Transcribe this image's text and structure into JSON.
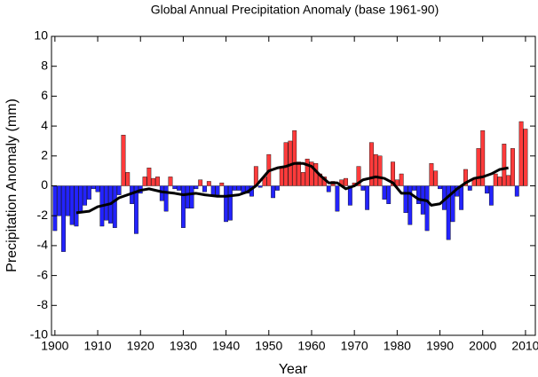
{
  "chart_data": {
    "type": "bar",
    "title": "Global Annual Precipitation Anomaly (base 1961-90)",
    "xlabel": "Year",
    "ylabel": "Precipitation Anomaly (mm)",
    "xlim": [
      1899.2,
      2012.3
    ],
    "ylim": [
      -10,
      10
    ],
    "xticks": [
      1900,
      1910,
      1920,
      1930,
      1940,
      1950,
      1960,
      1970,
      1980,
      1990,
      2000,
      2010
    ],
    "yticks": [
      -10,
      -8,
      -6,
      -4,
      -2,
      0,
      2,
      4,
      6,
      8,
      10
    ],
    "colors": {
      "positive": "#ff3b3b",
      "negative": "#2323ff",
      "line": "#000000"
    },
    "x": [
      1900,
      1901,
      1902,
      1903,
      1904,
      1905,
      1906,
      1907,
      1908,
      1909,
      1910,
      1911,
      1912,
      1913,
      1914,
      1915,
      1916,
      1917,
      1918,
      1919,
      1920,
      1921,
      1922,
      1923,
      1924,
      1925,
      1926,
      1927,
      1928,
      1929,
      1930,
      1931,
      1932,
      1933,
      1934,
      1935,
      1936,
      1937,
      1938,
      1939,
      1940,
      1941,
      1942,
      1943,
      1944,
      1945,
      1946,
      1947,
      1948,
      1949,
      1950,
      1951,
      1952,
      1953,
      1954,
      1955,
      1956,
      1957,
      1958,
      1959,
      1960,
      1961,
      1962,
      1963,
      1964,
      1965,
      1966,
      1967,
      1968,
      1969,
      1970,
      1971,
      1972,
      1973,
      1974,
      1975,
      1976,
      1977,
      1978,
      1979,
      1980,
      1981,
      1982,
      1983,
      1984,
      1985,
      1986,
      1987,
      1988,
      1989,
      1990,
      1991,
      1992,
      1993,
      1994,
      1995,
      1996,
      1997,
      1998,
      1999,
      2000,
      2001,
      2002,
      2003,
      2004,
      2005,
      2006,
      2007,
      2008,
      2009,
      2010
    ],
    "values": [
      -3.0,
      -2.0,
      -4.4,
      -2.0,
      -2.6,
      -2.7,
      -1.8,
      -1.3,
      -0.9,
      -0.2,
      -0.4,
      -2.7,
      -2.3,
      -2.5,
      -2.8,
      -0.6,
      3.4,
      0.9,
      -1.2,
      -3.2,
      -0.5,
      0.6,
      1.2,
      0.5,
      0.6,
      -1.0,
      -1.7,
      0.6,
      -0.2,
      -0.3,
      -2.8,
      -1.5,
      -1.5,
      -0.2,
      0.4,
      -0.4,
      0.3,
      -0.6,
      -0.6,
      0.2,
      -2.4,
      -2.3,
      -0.3,
      -0.3,
      -0.5,
      -0.5,
      -0.7,
      1.3,
      -0.1,
      0.6,
      2.1,
      -0.8,
      -0.3,
      1.3,
      2.9,
      3.0,
      3.7,
      1.6,
      0.9,
      1.8,
      1.6,
      1.5,
      0.8,
      0.6,
      -0.4,
      0.3,
      -1.7,
      0.4,
      0.5,
      -1.3,
      0.2,
      1.3,
      -0.3,
      -1.6,
      2.9,
      2.1,
      2.0,
      -0.9,
      -1.2,
      1.6,
      0.4,
      0.8,
      -1.8,
      -2.6,
      -0.3,
      -1.2,
      -1.9,
      -3.0,
      1.5,
      1.0,
      -0.2,
      -1.6,
      -3.6,
      -2.4,
      -0.7,
      -1.6,
      1.1,
      -0.3,
      0.5,
      2.5,
      3.7,
      -0.5,
      -1.3,
      0.8,
      0.6,
      2.8,
      0.7,
      2.5,
      -0.7,
      4.3,
      3.8
    ],
    "smooth": {
      "x": [
        1905,
        1908,
        1910,
        1913,
        1915,
        1918,
        1920,
        1922,
        1925,
        1928,
        1930,
        1933,
        1935,
        1938,
        1940,
        1943,
        1945,
        1947,
        1950,
        1952,
        1954,
        1956,
        1958,
        1960,
        1962,
        1964,
        1966,
        1968,
        1970,
        1972,
        1975,
        1977,
        1979,
        1981,
        1983,
        1985,
        1987,
        1988,
        1990,
        1992,
        1994,
        1996,
        1998,
        2000,
        2002,
        2004,
        2006
      ],
      "values": [
        -1.8,
        -1.7,
        -1.4,
        -1.2,
        -0.8,
        -0.5,
        -0.3,
        -0.2,
        -0.4,
        -0.5,
        -0.6,
        -0.5,
        -0.6,
        -0.7,
        -0.7,
        -0.6,
        -0.4,
        0.0,
        1.0,
        1.2,
        1.3,
        1.5,
        1.5,
        1.3,
        0.7,
        0.2,
        0.2,
        -0.2,
        0.0,
        0.4,
        0.6,
        0.5,
        0.2,
        -0.5,
        -0.5,
        -0.9,
        -1.0,
        -1.3,
        -1.2,
        -0.7,
        -0.2,
        0.2,
        0.5,
        0.6,
        0.8,
        1.1,
        1.2
      ]
    }
  }
}
